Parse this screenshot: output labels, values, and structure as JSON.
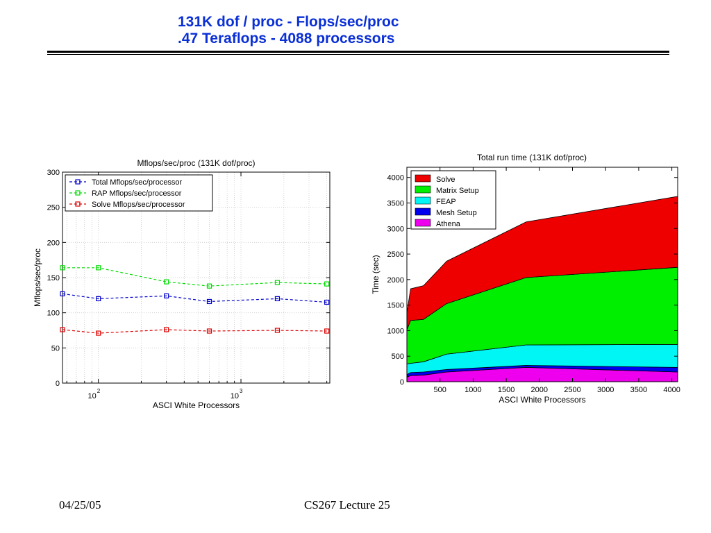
{
  "slide": {
    "title_line1": "131K dof / proc - Flops/sec/proc",
    "title_line2": ".47 Teraflops - 4088 processors",
    "footer_date": "04/25/05",
    "footer_course": "CS267 Lecture 25",
    "title_color": "#0a2fd6"
  },
  "chart_data": [
    {
      "type": "line",
      "title": "Mflops/sec/proc (131K dof/proc)",
      "xlabel": "ASCI White Processors",
      "ylabel": "Mflops/sec/proc",
      "xscale": "log",
      "xlim": [
        56,
        4200
      ],
      "ylim": [
        0,
        300
      ],
      "yticks": [
        0,
        50,
        100,
        150,
        200,
        250,
        300
      ],
      "xticks": [
        {
          "base": "10",
          "exp": "2",
          "value": 100
        },
        {
          "base": "10",
          "exp": "3",
          "value": 1000
        }
      ],
      "grid": true,
      "legend_position": "top-left",
      "x": [
        56,
        100,
        300,
        600,
        1800,
        4000
      ],
      "series": [
        {
          "name": "Total Mflops/sec/processor",
          "color": "#0000cc",
          "values": [
            127,
            120,
            124,
            116,
            120,
            115
          ]
        },
        {
          "name": "RAP Mflops/sec/processor",
          "color": "#00dd00",
          "values": [
            164,
            164,
            144,
            138,
            143,
            141
          ]
        },
        {
          "name": "Solve Mflops/sec/processor",
          "color": "#dd0000",
          "values": [
            76,
            71,
            76,
            74,
            75,
            74
          ]
        }
      ]
    },
    {
      "type": "area",
      "stacked": true,
      "title": "Total run time (131K dof/proc)",
      "xlabel": "ASCI White Processors",
      "ylabel": "Time (sec)",
      "xlim": [
        0,
        4088
      ],
      "ylim": [
        0,
        4200
      ],
      "yticks": [
        0,
        500,
        1000,
        1500,
        2000,
        2500,
        3000,
        3500,
        4000
      ],
      "xticks": [
        500,
        1000,
        1500,
        2000,
        2500,
        3000,
        3500,
        4000
      ],
      "legend_position": "top-left",
      "x": [
        1,
        56,
        250,
        600,
        1800,
        4088
      ],
      "series": [
        {
          "name": "Athena",
          "color": "#ee00ee",
          "values": [
            90,
            120,
            130,
            190,
            280,
            190
          ]
        },
        {
          "name": "Mesh Setup",
          "color": "#0000ee",
          "values": [
            50,
            60,
            60,
            50,
            40,
            90
          ]
        },
        {
          "name": "FEAP",
          "color": "#00f5f5",
          "values": [
            210,
            180,
            200,
            300,
            400,
            450
          ]
        },
        {
          "name": "Matrix Setup",
          "color": "#00ee00",
          "values": [
            670,
            840,
            830,
            990,
            1320,
            1510
          ]
        },
        {
          "name": "Solve",
          "color": "#ee0000",
          "values": [
            340,
            620,
            660,
            830,
            1090,
            1390
          ]
        }
      ],
      "legend_order": [
        "Solve",
        "Matrix Setup",
        "FEAP",
        "Mesh Setup",
        "Athena"
      ]
    }
  ]
}
